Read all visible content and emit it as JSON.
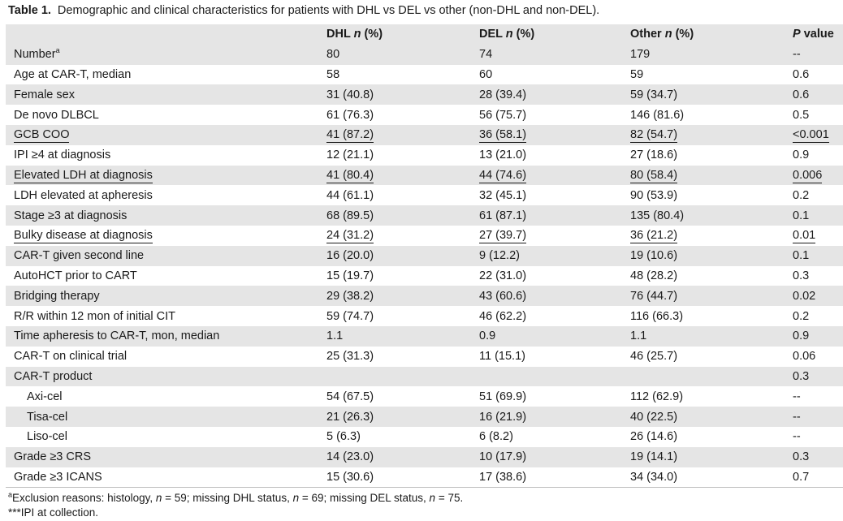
{
  "caption": {
    "label": "Table 1.",
    "text": "Demographic and clinical characteristics for patients with DHL vs DEL vs other (non-DHL and non-DEL)."
  },
  "header": {
    "col1": "",
    "col2_prefix": "DHL ",
    "col2_n": "n",
    "col2_suffix": " (%)",
    "col3_prefix": "DEL ",
    "col3_n": "n",
    "col3_suffix": " (%)",
    "col4_prefix": "Other ",
    "col4_n": "n",
    "col4_suffix": " (%)",
    "col5_p": "P",
    "col5_suffix": " value"
  },
  "rows": [
    {
      "label": "Number",
      "sup": "a",
      "dhl": "80",
      "del": "74",
      "other": "179",
      "p": "--"
    },
    {
      "label": "Age at CAR-T, median",
      "dhl": "58",
      "del": "60",
      "other": "59",
      "p": "0.6"
    },
    {
      "label": "Female sex",
      "dhl": "31 (40.8)",
      "del": "28 (39.4)",
      "other": "59 (34.7)",
      "p": "0.6"
    },
    {
      "label": "De novo DLBCL",
      "dhl": "61 (76.3)",
      "del": "56 (75.7)",
      "other": "146 (81.6)",
      "p": "0.5"
    },
    {
      "label": "GCB COO",
      "dhl": "41 (87.2)",
      "del": "36 (58.1)",
      "other": "82 (54.7)",
      "p": "<0.001"
    },
    {
      "label": "IPI ≥4 at diagnosis",
      "dhl": "12 (21.1)",
      "del": "13 (21.0)",
      "other": "27 (18.6)",
      "p": "0.9"
    },
    {
      "label": "Elevated LDH at diagnosis",
      "dhl": "41 (80.4)",
      "del": "44 (74.6)",
      "other": "80 (58.4)",
      "p": "0.006"
    },
    {
      "label": "LDH elevated at apheresis",
      "dhl": "44 (61.1)",
      "del": "32 (45.1)",
      "other": "90 (53.9)",
      "p": "0.2"
    },
    {
      "label": "Stage ≥3 at diagnosis",
      "dhl": "68 (89.5)",
      "del": "61 (87.1)",
      "other": "135 (80.4)",
      "p": "0.1"
    },
    {
      "label": "Bulky disease at diagnosis",
      "dhl": "24 (31.2)",
      "del": "27 (39.7)",
      "other": "36 (21.2)",
      "p": "0.01"
    },
    {
      "label": "CAR-T given second line",
      "dhl": "16 (20.0)",
      "del": "9 (12.2)",
      "other": "19 (10.6)",
      "p": "0.1"
    },
    {
      "label": "AutoHCT prior to CART",
      "dhl": "15 (19.7)",
      "del": "22 (31.0)",
      "other": "48 (28.2)",
      "p": "0.3"
    },
    {
      "label": "Bridging therapy",
      "dhl": "29 (38.2)",
      "del": "43 (60.6)",
      "other": "76 (44.7)",
      "p": "0.02"
    },
    {
      "label": "R/R within 12 mon of initial CIT",
      "dhl": "59 (74.7)",
      "del": "46 (62.2)",
      "other": "116 (66.3)",
      "p": "0.2"
    },
    {
      "label": "Time apheresis to CAR-T, mon, median",
      "dhl": "1.1",
      "del": "0.9",
      "other": "1.1",
      "p": "0.9"
    },
    {
      "label": "CAR-T on clinical trial",
      "dhl": "25 (31.3)",
      "del": "11 (15.1)",
      "other": "46 (25.7)",
      "p": "0.06"
    },
    {
      "label": "CAR-T product",
      "dhl": "",
      "del": "",
      "other": "",
      "p": "0.3"
    },
    {
      "label": "Axi-cel",
      "dhl": "54 (67.5)",
      "del": "51 (69.9)",
      "other": "112 (62.9)",
      "p": "--"
    },
    {
      "label": "Tisa-cel",
      "dhl": "21 (26.3)",
      "del": "16 (21.9)",
      "other": "40 (22.5)",
      "p": "--"
    },
    {
      "label": "Liso-cel",
      "dhl": "5 (6.3)",
      "del": "6 (8.2)",
      "other": "26 (14.6)",
      "p": "--"
    },
    {
      "label": "Grade ≥3 CRS",
      "dhl": "14 (23.0)",
      "del": "10 (17.9)",
      "other": "19 (14.1)",
      "p": "0.3"
    },
    {
      "label": "Grade ≥3 ICANS",
      "dhl": "15 (30.6)",
      "del": "17 (38.6)",
      "other": "34 (34.0)",
      "p": "0.7"
    }
  ],
  "footnotes": {
    "a_sup": "a",
    "a_1": "Exclusion reasons: histology, ",
    "a_n1": "n",
    "a_2": " = 59; missing DHL status, ",
    "a_n2": "n",
    "a_3": " = 69; missing DEL status, ",
    "a_n3": "n",
    "a_4": " = 75.",
    "b": "***IPI at collection."
  }
}
